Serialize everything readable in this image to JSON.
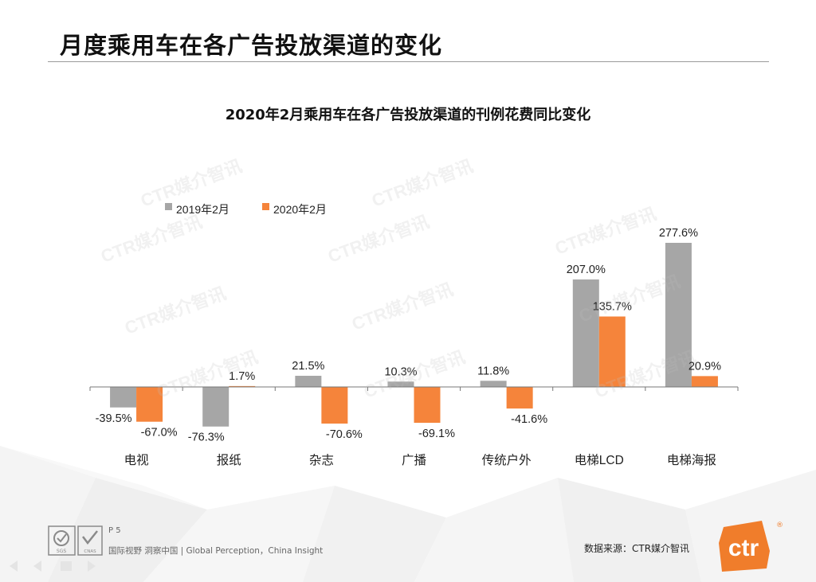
{
  "page": {
    "title": "月度乘用车在各广告投放渠道的变化",
    "page_number": "P 5",
    "footer_text": "国际视野  洞察中国 |  Global Perception，China Insight",
    "source": "数据来源：CTR媒介智讯",
    "watermark": "CTR媒介智讯",
    "logo_text": "ctr",
    "logo_mark": "®",
    "cert_marks": [
      "SGS",
      "CNAS"
    ]
  },
  "colors": {
    "gray_series": "#a6a6a6",
    "orange_series": "#f5843b",
    "logo": "#f07d2b"
  },
  "chart_data": {
    "type": "bar",
    "title": "2020年2月乘用车在各广告投放渠道的刊例花费同比变化",
    "categories": [
      "电视",
      "报纸",
      "杂志",
      "广播",
      "传统户外",
      "电梯LCD",
      "电梯海报"
    ],
    "series": [
      {
        "name": "2019年2月",
        "values": [
          -39.5,
          -76.3,
          21.5,
          10.3,
          11.8,
          207.0,
          277.6
        ]
      },
      {
        "name": "2020年2月",
        "values": [
          -67.0,
          1.7,
          -70.6,
          -69.1,
          -41.6,
          135.7,
          20.9
        ]
      }
    ],
    "value_suffix": "%",
    "ylim": [
      -100,
      300
    ],
    "legend": "top-left",
    "grid": false,
    "y_axis_visible": false
  }
}
